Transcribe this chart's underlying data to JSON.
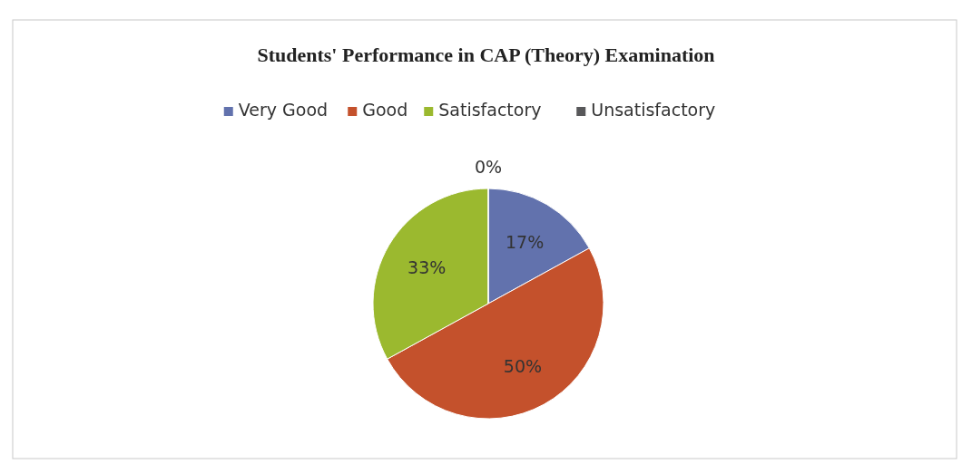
{
  "chart_data": {
    "type": "pie",
    "title": "Students' Performance in CAP (Theory) Examination",
    "categories": [
      "Very Good",
      "Good",
      "Satisfactory",
      "Unsatisfactory"
    ],
    "values": [
      17,
      50,
      33,
      0
    ],
    "colors": [
      "#6272ad",
      "#c4512c",
      "#9bb92f",
      "#58585a"
    ],
    "value_labels": [
      "17%",
      "50%",
      "33%",
      "0%"
    ],
    "legend": "top"
  }
}
